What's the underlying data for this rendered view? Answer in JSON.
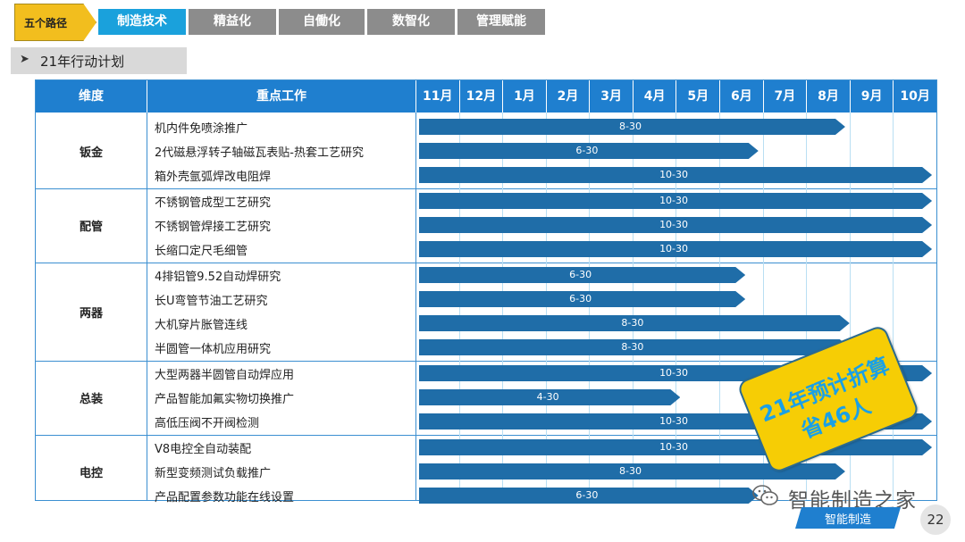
{
  "nav": {
    "main_label": "五个路径",
    "tabs": [
      "制造技术",
      "精益化",
      "自働化",
      "数智化",
      "管理赋能"
    ],
    "active_tab": 0
  },
  "section": {
    "title": "21年行动计划"
  },
  "table": {
    "headers": {
      "dimension": "维度",
      "work": "重点工作"
    },
    "months": [
      "11月",
      "12月",
      "1月",
      "2月",
      "3月",
      "4月",
      "5月",
      "6月",
      "7月",
      "8月",
      "9月",
      "10月"
    ],
    "groups": [
      {
        "name": "钣金",
        "tasks": [
          {
            "name": "机内件免喷涂推广",
            "bar_label": "8-30",
            "end_month_index": 9.9
          },
          {
            "name": "2代磁悬浮转子轴磁瓦表贴-热套工艺研究",
            "bar_label": "6-30",
            "end_month_index": 7.9
          },
          {
            "name": "箱外壳氩弧焊改电阻焊",
            "bar_label": "10-30",
            "end_month_index": 11.9
          }
        ]
      },
      {
        "name": "配管",
        "tasks": [
          {
            "name": "不锈钢管成型工艺研究",
            "bar_label": "10-30",
            "end_month_index": 11.9
          },
          {
            "name": "不锈钢管焊接工艺研究",
            "bar_label": "10-30",
            "end_month_index": 11.9
          },
          {
            "name": "长缩口定尺毛细管",
            "bar_label": "10-30",
            "end_month_index": 11.9
          }
        ]
      },
      {
        "name": "两器",
        "tasks": [
          {
            "name": "4排铝管9.52自动焊研究",
            "bar_label": "6-30",
            "end_month_index": 7.6
          },
          {
            "name": "长U弯管节油工艺研究",
            "bar_label": "6-30",
            "end_month_index": 7.6
          },
          {
            "name": "大机穿片胀管连线",
            "bar_label": "8-30",
            "end_month_index": 10.0
          },
          {
            "name": "半圆管一体机应用研究",
            "bar_label": "8-30",
            "end_month_index": 10.0
          }
        ]
      },
      {
        "name": "总装",
        "tasks": [
          {
            "name": "大型两器半圆管自动焊应用",
            "bar_label": "10-30",
            "end_month_index": 11.9
          },
          {
            "name": "产品智能加氟实物切换推广",
            "bar_label": "4-30",
            "end_month_index": 6.1
          },
          {
            "name": "高低压阀不开阀检测",
            "bar_label": "10-30",
            "end_month_index": 11.9
          }
        ]
      },
      {
        "name": "电控",
        "tasks": [
          {
            "name": "V8电控全自动装配",
            "bar_label": "10-30",
            "end_month_index": 11.9
          },
          {
            "name": "新型变频测试负载推广",
            "bar_label": "8-30",
            "end_month_index": 9.9
          },
          {
            "name": "产品配置参数功能在线设置",
            "bar_label": "6-30",
            "end_month_index": 7.9
          }
        ]
      }
    ]
  },
  "stamp": {
    "line1": "21年预计折算",
    "line2": "省46人"
  },
  "watermark": {
    "text": "智能制造之家",
    "icon": "wechat-icon"
  },
  "footer": {
    "badge": "智能制造",
    "page_number": "22"
  },
  "colors": {
    "accent": "#1aa1dc",
    "header": "#1f7fcf",
    "bar": "#1f6da8",
    "stamp": "#f6cd05",
    "nav_main": "#f2be1e"
  }
}
